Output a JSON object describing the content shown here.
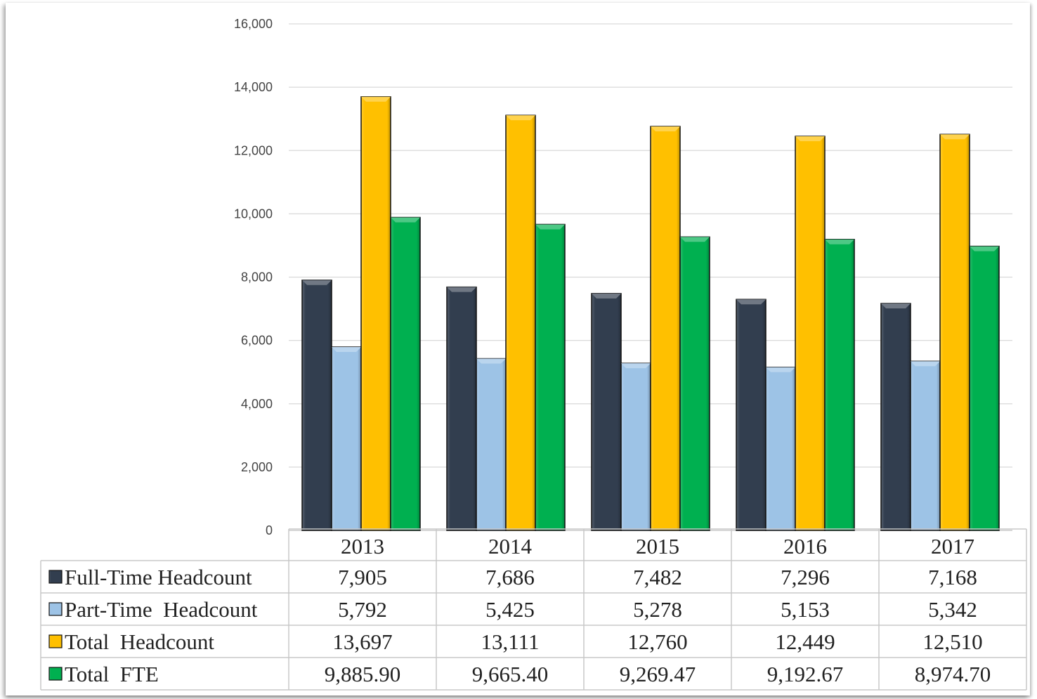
{
  "chart_data": {
    "type": "bar",
    "categories": [
      "2013",
      "2014",
      "2015",
      "2016",
      "2017"
    ],
    "series": [
      {
        "name": "Full-Time Headcount",
        "label": "Full-Time Headcount",
        "values": [
          7905,
          7686,
          7482,
          7296,
          7168
        ],
        "display": [
          "7,905",
          "7,686",
          "7,482",
          "7,296",
          "7,168"
        ],
        "color": "#323e4f"
      },
      {
        "name": "Part-Time Headcount",
        "label": "Part-Time  Headcount",
        "values": [
          5792,
          5425,
          5278,
          5153,
          5342
        ],
        "display": [
          "5,792",
          "5,425",
          "5,278",
          "5,153",
          "5,342"
        ],
        "color": "#9dc3e6"
      },
      {
        "name": "Total Headcount",
        "label": "Total  Headcount",
        "values": [
          13697,
          13111,
          12760,
          12449,
          12510
        ],
        "display": [
          "13,697",
          "13,111",
          "12,760",
          "12,449",
          "12,510"
        ],
        "color": "#ffc000"
      },
      {
        "name": "Total FTE",
        "label": "Total  FTE",
        "values": [
          9885.9,
          9665.4,
          9269.47,
          9192.67,
          8974.7
        ],
        "display": [
          "9,885.90",
          "9,665.40",
          "9,269.47",
          "9,192.67",
          "8,974.70"
        ],
        "color": "#00b050"
      }
    ],
    "ylim": [
      0,
      16000
    ],
    "yticks": [
      "0",
      "2,000",
      "4,000",
      "6,000",
      "8,000",
      "10,000",
      "12,000",
      "14,000",
      "16,000"
    ],
    "grid": true,
    "legend": "data-table",
    "title": "",
    "xlabel": "",
    "ylabel": ""
  }
}
